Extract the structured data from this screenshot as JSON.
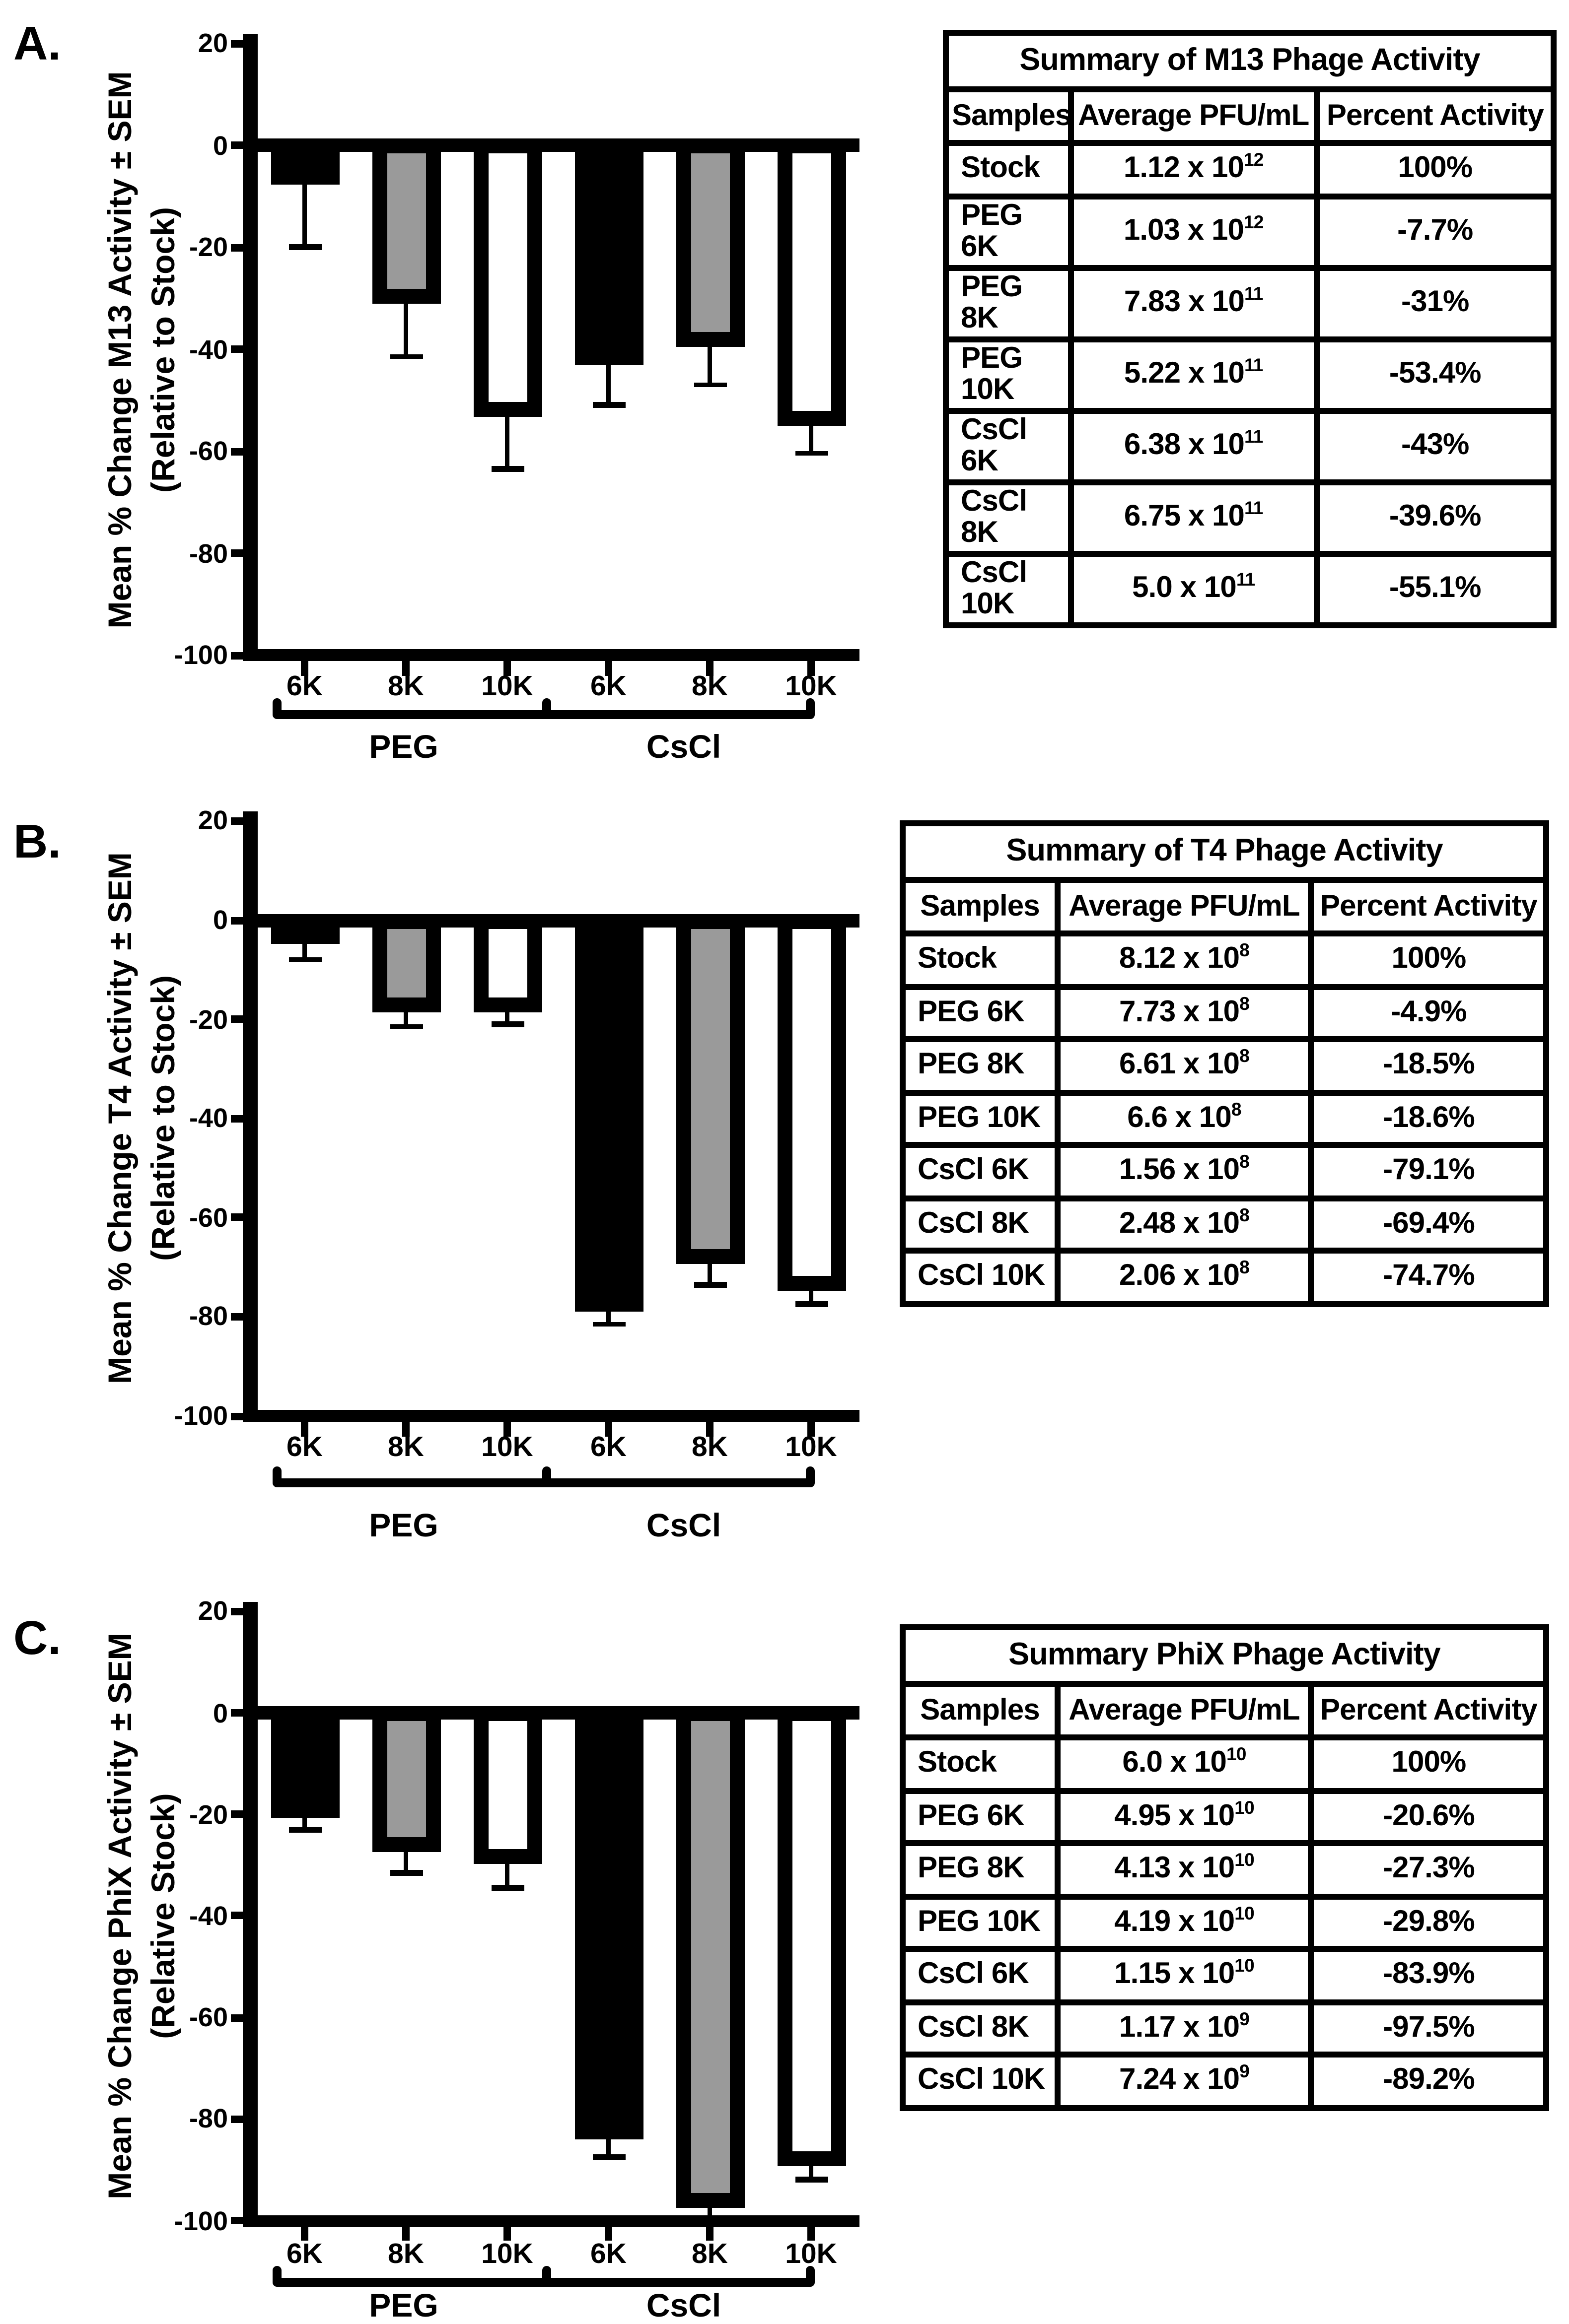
{
  "figure": {
    "background": "#ffffff",
    "description_visible_panels": [
      "A.",
      "B.",
      "C."
    ]
  },
  "colors": {
    "black": "#000000",
    "gray": "#9a9a9a",
    "white": "#ffffff",
    "axis": "#000000"
  },
  "panels": [
    {
      "label": "A.",
      "ylabel_line1": "Mean % Change M13 Activity ± SEM",
      "ylabel_line2": "(Relative to Stock)",
      "table": {
        "title": "Summary of M13 Phage Activity",
        "headers": [
          "Samples",
          "Average PFU/mL",
          "Percent Activity"
        ],
        "rows": [
          {
            "sample": "Stock",
            "pfu_base": "1.12 x 10",
            "pfu_exp": "12",
            "percent": "100%"
          },
          {
            "sample": "PEG 6K",
            "pfu_base": "1.03 x 10",
            "pfu_exp": "12",
            "percent": "-7.7%"
          },
          {
            "sample": "PEG 8K",
            "pfu_base": "7.83 x 10",
            "pfu_exp": "11",
            "percent": "-31%"
          },
          {
            "sample": "PEG 10K",
            "pfu_base": "5.22 x 10",
            "pfu_exp": "11",
            "percent": "-53.4%"
          },
          {
            "sample": "CsCl 6K",
            "pfu_base": "6.38 x 10",
            "pfu_exp": "11",
            "percent": "-43%"
          },
          {
            "sample": "CsCl 8K",
            "pfu_base": "6.75 x 10",
            "pfu_exp": "11",
            "percent": "-39.6%"
          },
          {
            "sample": "CsCl 10K",
            "pfu_base": "5.0 x 10",
            "pfu_exp": "11",
            "percent": "-55.1%"
          }
        ]
      }
    },
    {
      "label": "B.",
      "ylabel_line1": "Mean % Change T4 Activity ± SEM",
      "ylabel_line2": "(Relative to Stock)",
      "table": {
        "title": "Summary of T4 Phage Activity",
        "headers": [
          "Samples",
          "Average PFU/mL",
          "Percent Activity"
        ],
        "rows": [
          {
            "sample": "Stock",
            "pfu_base": "8.12 x 10",
            "pfu_exp": "8",
            "percent": "100%"
          },
          {
            "sample": "PEG 6K",
            "pfu_base": "7.73 x 10",
            "pfu_exp": "8",
            "percent": "-4.9%"
          },
          {
            "sample": "PEG 8K",
            "pfu_base": "6.61 x 10",
            "pfu_exp": "8",
            "percent": "-18.5%"
          },
          {
            "sample": "PEG 10K",
            "pfu_base": "6.6 x 10",
            "pfu_exp": "8",
            "percent": "-18.6%"
          },
          {
            "sample": "CsCl 6K",
            "pfu_base": "1.56 x 10",
            "pfu_exp": "8",
            "percent": "-79.1%"
          },
          {
            "sample": "CsCl 8K",
            "pfu_base": "2.48 x 10",
            "pfu_exp": "8",
            "percent": "-69.4%"
          },
          {
            "sample": "CsCl 10K",
            "pfu_base": "2.06 x 10",
            "pfu_exp": "8",
            "percent": "-74.7%"
          }
        ]
      }
    },
    {
      "label": "C.",
      "ylabel_line1": "Mean % Change PhiX Activity ± SEM",
      "ylabel_line2": "(Relative Stock)",
      "table": {
        "title": "Summary PhiX Phage Activity",
        "headers": [
          "Samples",
          "Average PFU/mL",
          "Percent Activity"
        ],
        "rows": [
          {
            "sample": "Stock",
            "pfu_base": "6.0 x 10",
            "pfu_exp": "10",
            "percent": "100%"
          },
          {
            "sample": "PEG 6K",
            "pfu_base": "4.95 x 10",
            "pfu_exp": "10",
            "percent": "-20.6%"
          },
          {
            "sample": "PEG 8K",
            "pfu_base": "4.13 x 10",
            "pfu_exp": "10",
            "percent": "-27.3%"
          },
          {
            "sample": "PEG 10K",
            "pfu_base": "4.19 x 10",
            "pfu_exp": "10",
            "percent": "-29.8%"
          },
          {
            "sample": "CsCl 6K",
            "pfu_base": "1.15 x 10",
            "pfu_exp": "10",
            "percent": "-83.9%"
          },
          {
            "sample": "CsCl 8K",
            "pfu_base": "1.17 x 10",
            "pfu_exp": "9",
            "percent": "-97.5%"
          },
          {
            "sample": "CsCl 10K",
            "pfu_base": "7.24 x 10",
            "pfu_exp": "9",
            "percent": "-89.2%"
          }
        ]
      }
    }
  ],
  "chart_data": [
    {
      "type": "bar",
      "panel": "A",
      "title": "",
      "ylabel": "Mean % Change M13 Activity ± SEM (Relative to Stock)",
      "xlabel": "",
      "categories": [
        "PEG 6K",
        "PEG 8K",
        "PEG 10K",
        "CsCl 6K",
        "CsCl 8K",
        "CsCl 10K"
      ],
      "x_tick_labels": [
        "6K",
        "8K",
        "10K",
        "6K",
        "8K",
        "10K"
      ],
      "group_labels": [
        "PEG",
        "CsCl"
      ],
      "values": [
        -7.7,
        -31,
        -53.4,
        -43,
        -39.6,
        -55.1
      ],
      "sem": [
        12.3,
        10.5,
        10.1,
        8.0,
        7.4,
        5.4
      ],
      "bar_color_keys": [
        "black",
        "gray",
        "white",
        "black",
        "gray",
        "white"
      ],
      "yticks": [
        20,
        0,
        -20,
        -40,
        -60,
        -80,
        -100
      ],
      "ylim": [
        -100,
        20
      ],
      "grid": false,
      "legend": null,
      "error_bars": "downward SEM with caps"
    },
    {
      "type": "bar",
      "panel": "B",
      "title": "",
      "ylabel": "Mean % Change T4 Activity ± SEM (Relative to Stock)",
      "xlabel": "",
      "categories": [
        "PEG 6K",
        "PEG 8K",
        "PEG 10K",
        "CsCl 6K",
        "CsCl 8K",
        "CsCl 10K"
      ],
      "x_tick_labels": [
        "6K",
        "8K",
        "10K",
        "6K",
        "8K",
        "10K"
      ],
      "group_labels": [
        "PEG",
        "CsCl"
      ],
      "values": [
        -4.9,
        -18.5,
        -18.6,
        -79.1,
        -69.4,
        -74.7
      ],
      "sem": [
        3.1,
        3.0,
        2.4,
        2.4,
        4.1,
        2.8
      ],
      "bar_color_keys": [
        "black",
        "gray",
        "white",
        "black",
        "gray",
        "white"
      ],
      "yticks": [
        20,
        0,
        -20,
        -40,
        -60,
        -80,
        -100
      ],
      "ylim": [
        -100,
        20
      ],
      "grid": false,
      "legend": null,
      "error_bars": "downward SEM with caps"
    },
    {
      "type": "bar",
      "panel": "C",
      "title": "",
      "ylabel": "Mean % Change PhiX Activity ± SEM (Relative Stock)",
      "xlabel": "",
      "categories": [
        "PEG 6K",
        "PEG 8K",
        "PEG 10K",
        "CsCl 6K",
        "CsCl 8K",
        "CsCl 10K"
      ],
      "x_tick_labels": [
        "6K",
        "8K",
        "10K",
        "6K",
        "8K",
        "10K"
      ],
      "group_labels": [
        "PEG",
        "CsCl"
      ],
      "values": [
        -20.6,
        -27.3,
        -29.8,
        -83.9,
        -97.5,
        -89.2
      ],
      "sem": [
        2.4,
        4.2,
        4.7,
        3.6,
        2.5,
        2.8
      ],
      "bar_color_keys": [
        "black",
        "gray",
        "white",
        "black",
        "gray",
        "white"
      ],
      "yticks": [
        20,
        0,
        -20,
        -40,
        -60,
        -80,
        -100
      ],
      "ylim": [
        -100,
        20
      ],
      "grid": false,
      "legend": null,
      "error_bars": "downward SEM with caps"
    }
  ]
}
